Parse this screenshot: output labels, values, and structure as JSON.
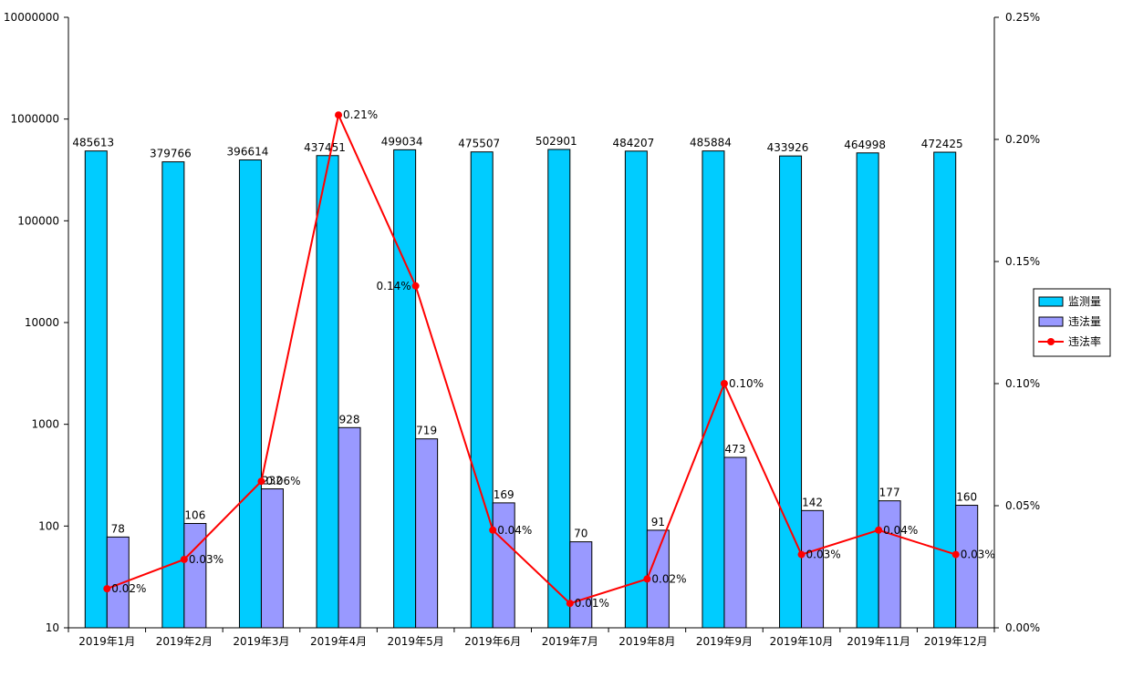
{
  "chart_data": {
    "type": "bar",
    "categories": [
      "2019年1月",
      "2019年2月",
      "2019年3月",
      "2019年4月",
      "2019年5月",
      "2019年6月",
      "2019年7月",
      "2019年8月",
      "2019年9月",
      "2019年10月",
      "2019年11月",
      "2019年12月"
    ],
    "series": [
      {
        "name": "监测量",
        "kind": "bar",
        "axis": "left",
        "color": "#00CCFF",
        "values": [
          485613,
          379766,
          396614,
          437451,
          499034,
          475507,
          502901,
          484207,
          485884,
          433926,
          464998,
          472425
        ],
        "labels": [
          "485613",
          "379766",
          "396614",
          "437451",
          "499034",
          "475507",
          "502901",
          "484207",
          "485884",
          "433926",
          "464998",
          "472425"
        ]
      },
      {
        "name": "违法量",
        "kind": "bar",
        "axis": "left",
        "color": "#9999FF",
        "values": [
          78,
          106,
          232,
          928,
          719,
          169,
          70,
          91,
          473,
          142,
          177,
          160
        ],
        "labels": [
          "78",
          "106",
          "232",
          "928",
          "719",
          "169",
          "70",
          "91",
          "473",
          "142",
          "177",
          "160"
        ]
      },
      {
        "name": "违法率",
        "kind": "line",
        "axis": "right",
        "color": "#FF0000",
        "values": [
          0.016,
          0.028,
          0.06,
          0.21,
          0.14,
          0.04,
          0.01,
          0.02,
          0.1,
          0.03,
          0.04,
          0.03
        ],
        "labels": [
          "0.02%",
          "0.03%",
          "0.06%",
          "0.21%",
          "0.14%",
          "0.04%",
          "0.01%",
          "0.02%",
          "0.10%",
          "0.03%",
          "0.04%",
          "0.03%"
        ]
      }
    ],
    "y_left": {
      "scale": "log",
      "min": 10,
      "max": 10000000,
      "ticks": [
        10,
        100,
        1000,
        10000,
        100000,
        1000000,
        10000000
      ],
      "tick_labels": [
        "10",
        "100",
        "1000",
        "10000",
        "100000",
        "1000000",
        "10000000"
      ]
    },
    "y_right": {
      "scale": "linear",
      "min": 0,
      "max": 0.25,
      "ticks": [
        0,
        0.05,
        0.1,
        0.15,
        0.2,
        0.25
      ],
      "tick_labels": [
        "0.00%",
        "0.05%",
        "0.10%",
        "0.15%",
        "0.20%",
        "0.25%"
      ]
    },
    "legend": {
      "position": "right"
    },
    "grid": false
  }
}
